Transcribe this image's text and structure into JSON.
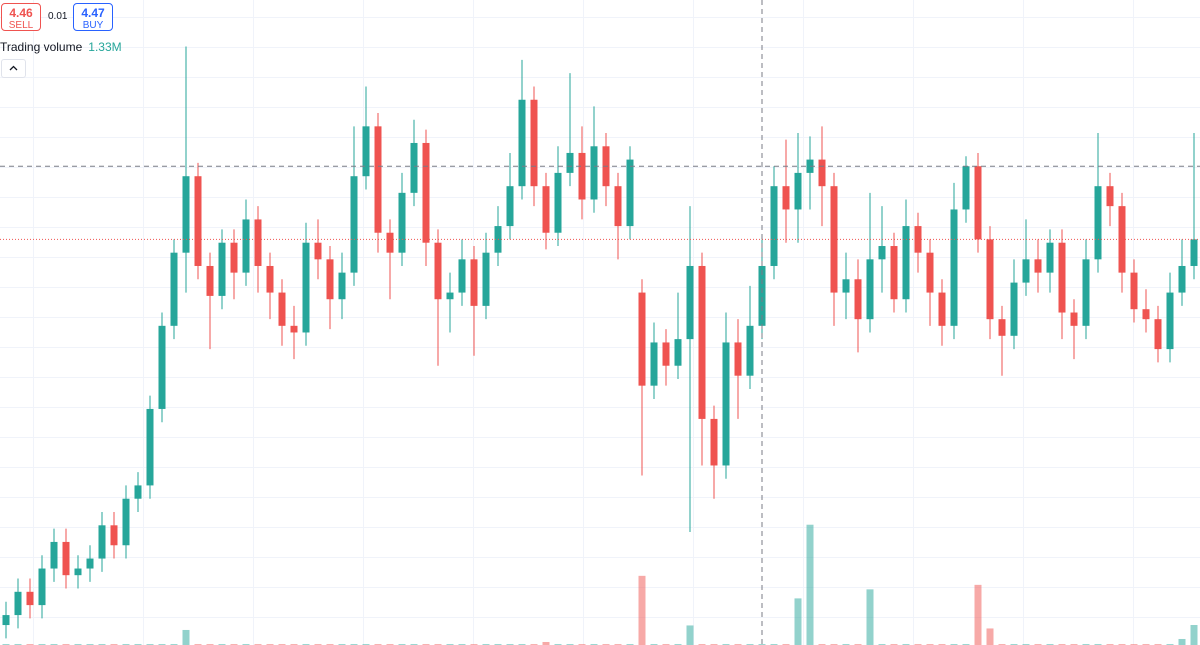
{
  "toolbar": {
    "sell": {
      "price": 4.46,
      "label": "SELL"
    },
    "spread": 0.01,
    "buy": {
      "price": 4.47,
      "label": "BUY"
    }
  },
  "chart_data": {
    "type": "candlestick",
    "open": [
      3.3,
      3.33,
      3.4,
      3.36,
      3.47,
      3.55,
      3.45,
      3.47,
      3.5,
      3.6,
      3.54,
      3.68,
      3.72,
      3.95,
      4.2,
      4.42,
      4.65,
      4.38,
      4.29,
      4.45,
      4.36,
      4.52,
      4.38,
      4.3,
      4.2,
      4.18,
      4.45,
      4.4,
      4.28,
      4.36,
      4.65,
      4.8,
      4.48,
      4.42,
      4.6,
      4.75,
      4.45,
      4.28,
      4.3,
      4.4,
      4.26,
      4.42,
      4.5,
      4.62,
      4.88,
      4.62,
      4.48,
      4.66,
      4.72,
      4.58,
      4.74,
      4.62,
      4.5,
      4.3,
      4.02,
      4.15,
      4.08,
      4.16,
      4.38,
      3.92,
      3.78,
      4.15,
      4.05,
      4.2,
      4.38,
      4.62,
      4.55,
      4.66,
      4.7,
      4.62,
      4.3,
      4.34,
      4.22,
      4.4,
      4.44,
      4.28,
      4.5,
      4.42,
      4.3,
      4.2,
      4.55,
      4.68,
      4.46,
      4.22,
      4.17,
      4.33,
      4.4,
      4.36,
      4.45,
      4.24,
      4.2,
      4.4,
      4.62,
      4.56,
      4.36,
      4.25,
      4.22,
      4.13,
      4.3,
      4.38
    ],
    "high": [
      3.37,
      3.44,
      3.44,
      3.51,
      3.59,
      3.59,
      3.51,
      3.54,
      3.64,
      3.64,
      3.72,
      3.76,
      3.99,
      4.24,
      4.46,
      5.04,
      4.69,
      4.42,
      4.49,
      4.49,
      4.58,
      4.56,
      4.42,
      4.34,
      4.26,
      4.51,
      4.52,
      4.44,
      4.42,
      4.8,
      4.92,
      4.84,
      4.52,
      4.66,
      4.82,
      4.79,
      4.49,
      4.36,
      4.46,
      4.44,
      4.48,
      4.56,
      4.72,
      5.0,
      4.92,
      4.66,
      4.74,
      4.96,
      4.8,
      4.86,
      4.78,
      4.66,
      4.74,
      4.34,
      4.21,
      4.19,
      4.3,
      4.56,
      4.42,
      3.96,
      4.24,
      4.22,
      4.32,
      4.46,
      4.68,
      4.76,
      4.78,
      4.77,
      4.8,
      4.66,
      4.42,
      4.4,
      4.6,
      4.56,
      4.48,
      4.58,
      4.54,
      4.46,
      4.34,
      4.63,
      4.71,
      4.72,
      4.5,
      4.26,
      4.4,
      4.52,
      4.46,
      4.49,
      4.49,
      4.28,
      4.46,
      4.78,
      4.66,
      4.6,
      4.4,
      4.31,
      4.26,
      4.36,
      4.46,
      4.78
    ],
    "low": [
      3.26,
      3.29,
      3.32,
      3.32,
      3.43,
      3.41,
      3.41,
      3.43,
      3.46,
      3.5,
      3.5,
      3.64,
      3.68,
      3.91,
      4.16,
      4.3,
      4.34,
      4.13,
      4.25,
      4.28,
      4.32,
      4.3,
      4.22,
      4.14,
      4.1,
      4.14,
      4.34,
      4.19,
      4.22,
      4.32,
      4.61,
      4.42,
      4.28,
      4.38,
      4.56,
      4.38,
      4.08,
      4.18,
      4.26,
      4.11,
      4.22,
      4.38,
      4.46,
      4.58,
      4.56,
      4.43,
      4.44,
      4.62,
      4.52,
      4.54,
      4.56,
      4.4,
      4.46,
      3.75,
      3.98,
      4.02,
      4.04,
      3.58,
      3.78,
      3.68,
      3.74,
      3.92,
      4.01,
      4.16,
      4.34,
      4.45,
      4.45,
      4.55,
      4.5,
      4.2,
      4.22,
      4.12,
      4.18,
      4.3,
      4.24,
      4.24,
      4.36,
      4.2,
      4.14,
      4.16,
      4.51,
      4.42,
      4.16,
      4.05,
      4.13,
      4.29,
      4.3,
      4.3,
      4.16,
      4.1,
      4.16,
      4.36,
      4.5,
      4.3,
      4.21,
      4.18,
      4.09,
      4.09,
      4.26,
      4.34
    ],
    "close": [
      3.33,
      3.4,
      3.36,
      3.47,
      3.55,
      3.45,
      3.47,
      3.5,
      3.6,
      3.54,
      3.68,
      3.72,
      3.95,
      4.2,
      4.42,
      4.65,
      4.38,
      4.29,
      4.45,
      4.36,
      4.52,
      4.38,
      4.3,
      4.2,
      4.18,
      4.45,
      4.4,
      4.28,
      4.36,
      4.65,
      4.8,
      4.48,
      4.42,
      4.6,
      4.75,
      4.45,
      4.28,
      4.3,
      4.4,
      4.26,
      4.42,
      4.5,
      4.62,
      4.88,
      4.62,
      4.48,
      4.66,
      4.72,
      4.58,
      4.74,
      4.62,
      4.5,
      4.7,
      4.02,
      4.15,
      4.08,
      4.16,
      4.38,
      3.92,
      3.78,
      4.15,
      4.05,
      4.2,
      4.38,
      4.62,
      4.55,
      4.66,
      4.7,
      4.62,
      4.3,
      4.34,
      4.22,
      4.4,
      4.44,
      4.28,
      4.5,
      4.42,
      4.3,
      4.2,
      4.55,
      4.68,
      4.46,
      4.22,
      4.17,
      4.33,
      4.4,
      4.36,
      4.45,
      4.24,
      4.2,
      4.4,
      4.62,
      4.56,
      4.36,
      4.25,
      4.22,
      4.13,
      4.3,
      4.38,
      4.46
    ],
    "ylim": [
      3.24,
      5.18
    ],
    "up_color": "#26a69a",
    "down_color": "#ef5350",
    "grid": true,
    "crosshair": {
      "index": 63,
      "price": 4.68
    },
    "volume": {
      "name": "Trading volume",
      "values": [
        60000,
        60000,
        60000,
        60000,
        60000,
        60000,
        60000,
        60000,
        60000,
        60000,
        60000,
        60000,
        60000,
        60000,
        60000,
        1000000,
        60000,
        60000,
        60000,
        60000,
        60000,
        60000,
        60000,
        60000,
        60000,
        60000,
        60000,
        60000,
        60000,
        60000,
        60000,
        60000,
        60000,
        60000,
        60000,
        60000,
        60000,
        60000,
        60000,
        60000,
        60000,
        60000,
        60000,
        60000,
        60000,
        200000,
        60000,
        60000,
        60000,
        60000,
        60000,
        60000,
        60000,
        4600000,
        60000,
        60000,
        60000,
        1300000,
        60000,
        60000,
        60000,
        60000,
        60000,
        60000,
        60000,
        60000,
        3100000,
        8000000,
        60000,
        60000,
        60000,
        60000,
        3700000,
        60000,
        60000,
        60000,
        60000,
        60000,
        60000,
        60000,
        60000,
        4000000,
        1100000,
        60000,
        60000,
        60000,
        60000,
        60000,
        60000,
        60000,
        60000,
        60000,
        60000,
        60000,
        60000,
        60000,
        60000,
        60000,
        400000,
        1330000
      ],
      "last_value_label": "1.33M",
      "vlim": [
        0,
        42900000
      ]
    }
  }
}
